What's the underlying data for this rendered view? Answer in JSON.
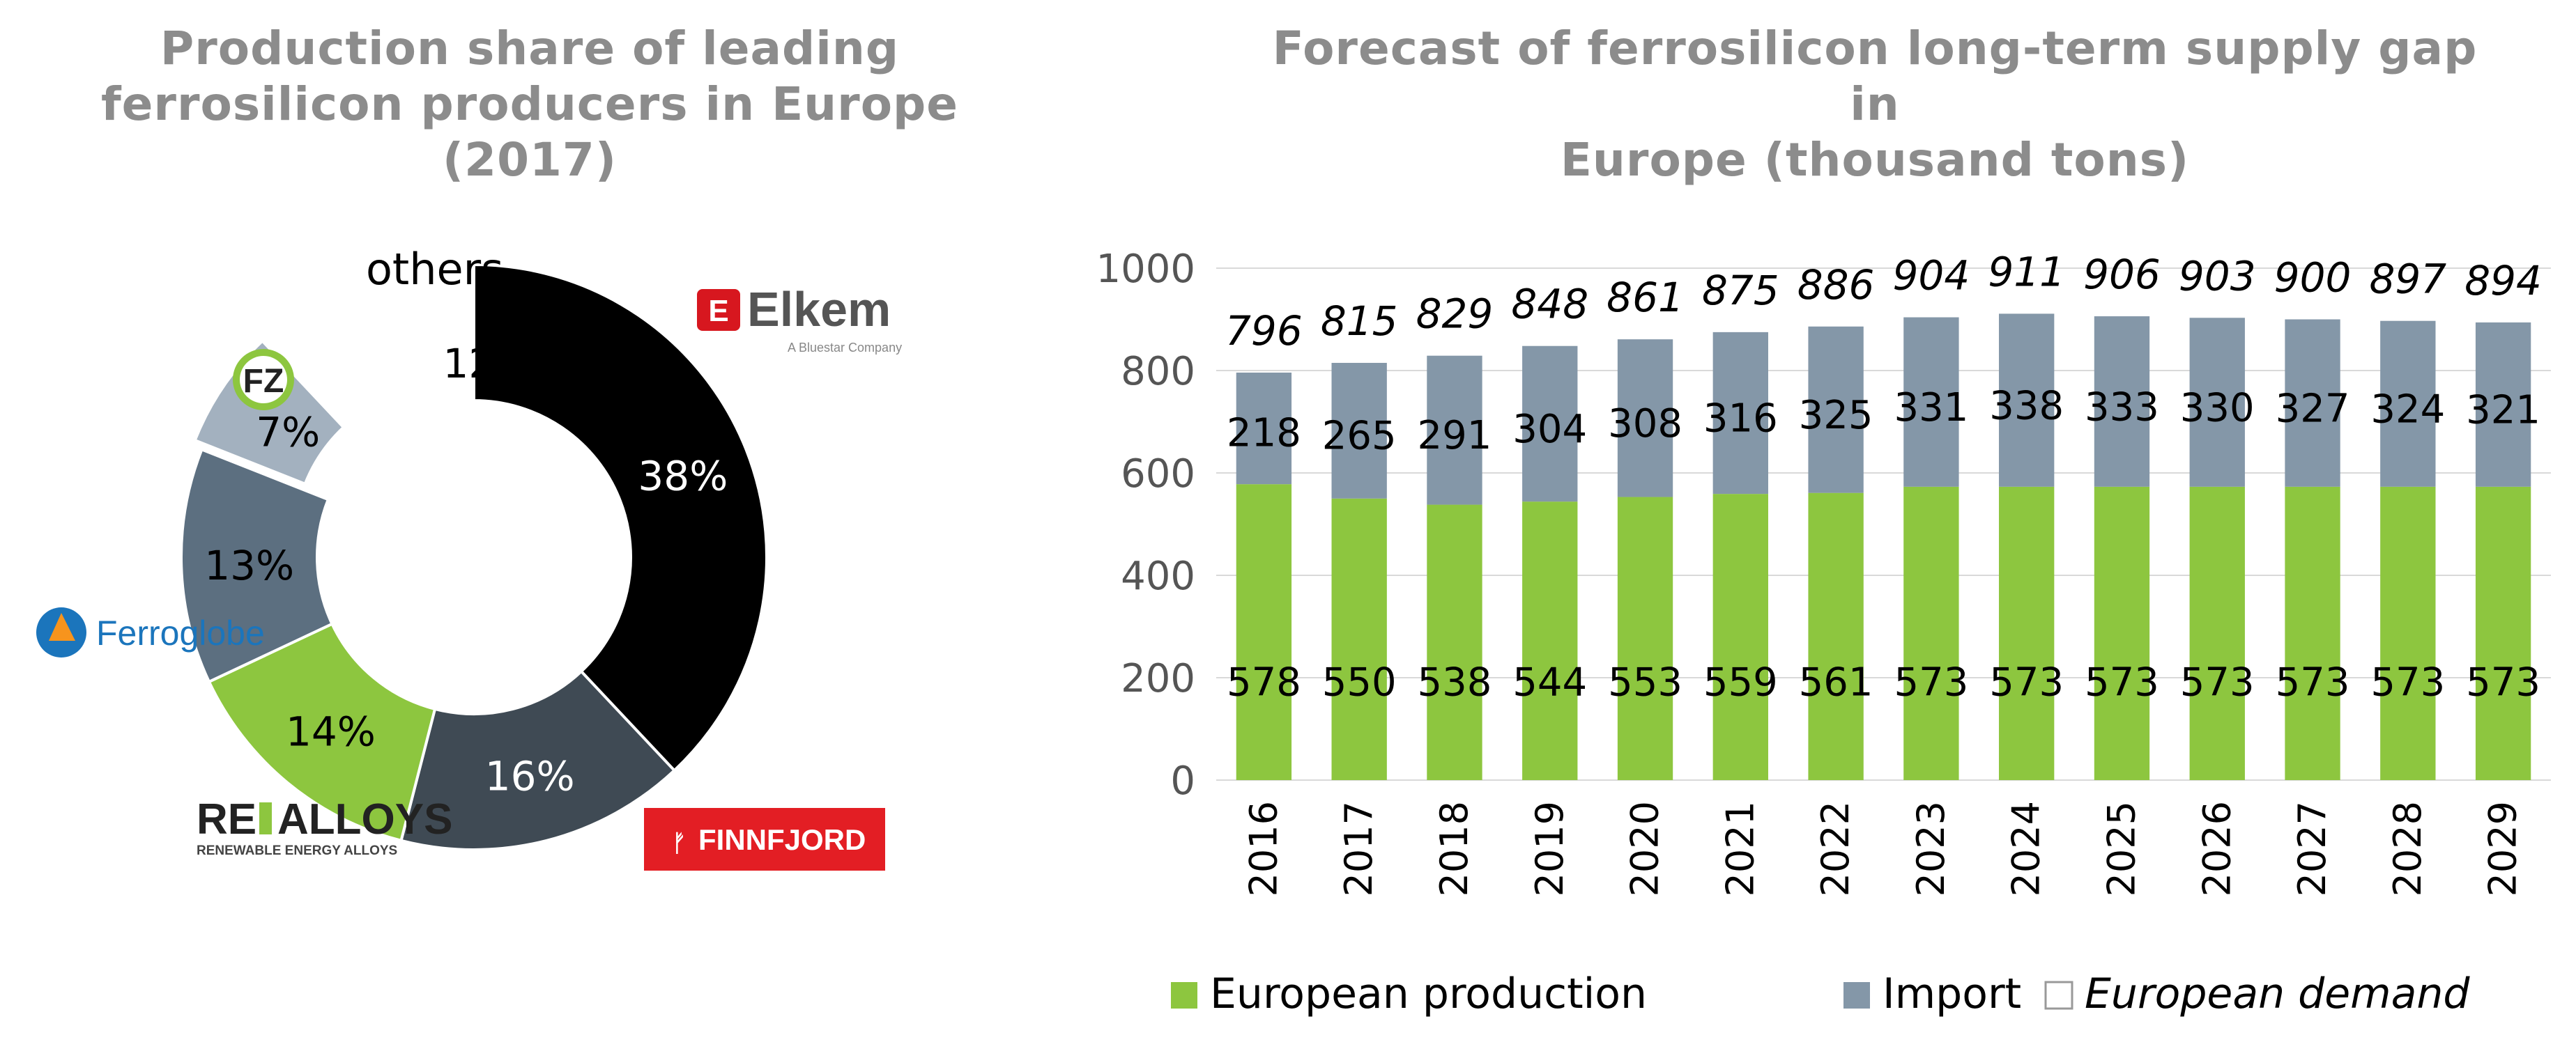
{
  "left_title_line1": "Production share of leading",
  "left_title_line2": "ferrosilicon producers in Europe (2017)",
  "right_title_line1": "Forecast of ferrosilicon long-term supply gap in",
  "right_title_line2": "Europe (thousand tons)",
  "logos": {
    "elkem": "Elkem",
    "elkem_sub": "A Bluestar Company",
    "elkem_mark": "E",
    "fz": "FZ",
    "ferroglobe": "Ferroglobe",
    "realloys_a": "RE",
    "realloys_b": "ALLOYS",
    "realloys_sub": "RENEWABLE ENERGY ALLOYS",
    "finnfjord": "FINNFJORD"
  },
  "chart_data": [
    {
      "type": "pie",
      "title": "Production share of leading ferrosilicon producers in Europe (2017)",
      "slices": [
        {
          "name": "Elkem",
          "label": "38%",
          "value": 38,
          "color": "#000000"
        },
        {
          "name": "Finnfjord",
          "label": "16%",
          "value": 16,
          "color": "#3f4a54"
        },
        {
          "name": "RE Alloys",
          "label": "14%",
          "value": 14,
          "color": "#8dc63f"
        },
        {
          "name": "Ferroglobe",
          "label": "13%",
          "value": 13,
          "color": "#5c6f80"
        },
        {
          "name": "FZ",
          "label": "7%",
          "value": 7,
          "color": "#a3b1bf"
        },
        {
          "name": "others",
          "label": "12%",
          "value": 12,
          "color": "#ffffff"
        }
      ],
      "others_label": "others"
    },
    {
      "type": "bar",
      "stacked": true,
      "title": "Forecast of ferrosilicon long-term supply gap in Europe (thousand tons)",
      "categories": [
        "2016",
        "2017",
        "2018",
        "2019",
        "2020",
        "2021",
        "2022",
        "2023",
        "2024",
        "2025",
        "2026",
        "2027",
        "2028",
        "2029"
      ],
      "series": [
        {
          "name": "European production",
          "values": [
            578,
            550,
            538,
            544,
            553,
            559,
            561,
            573,
            573,
            573,
            573,
            573,
            573,
            573
          ],
          "color": "#8dc63f"
        },
        {
          "name": "Import",
          "values": [
            218,
            265,
            291,
            304,
            308,
            316,
            325,
            331,
            338,
            333,
            330,
            327,
            324,
            321
          ],
          "color": "#8497a8"
        }
      ],
      "totals": {
        "name": "European demand",
        "values": [
          796,
          815,
          829,
          848,
          861,
          875,
          886,
          904,
          911,
          906,
          903,
          900,
          897,
          894
        ]
      },
      "ylim": [
        0,
        1000
      ],
      "yticks": [
        0,
        200,
        400,
        600,
        800,
        1000
      ],
      "gridlines": true,
      "legend": "bottom"
    }
  ]
}
